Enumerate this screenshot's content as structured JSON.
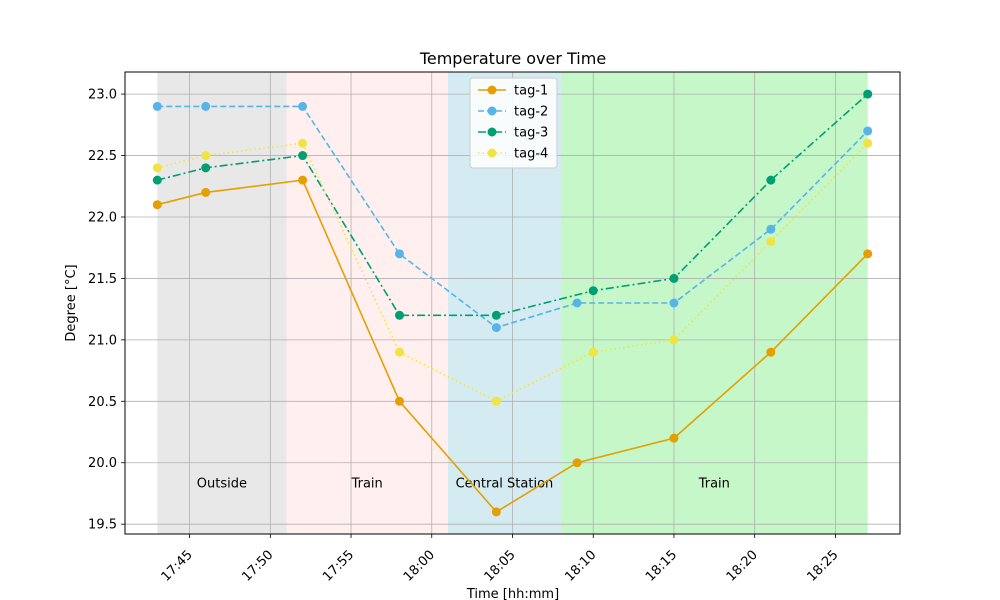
{
  "chart_data": {
    "type": "line",
    "title": "Temperature over Time",
    "xlabel": "Time [hh:mm]",
    "ylabel": "Degree [°C]",
    "xlim": [
      "17:41",
      "18:29"
    ],
    "ylim": [
      19.42,
      23.18
    ],
    "grid": true,
    "legend_position": "upper-center",
    "x_ticks": [
      "17:45",
      "17:50",
      "17:55",
      "18:00",
      "18:05",
      "18:10",
      "18:15",
      "18:20",
      "18:25"
    ],
    "y_ticks": [
      "19.5",
      "20.0",
      "20.5",
      "21.0",
      "21.5",
      "22.0",
      "22.5",
      "23.0"
    ],
    "regions": [
      {
        "label": "Outside",
        "start": "17:43",
        "end": "17:51",
        "color": "#e8e8e8"
      },
      {
        "label": "Train",
        "start": "17:51",
        "end": "18:01",
        "color": "#fff0ef"
      },
      {
        "label": "Central Station",
        "start": "18:01",
        "end": "18:08",
        "color": "#d4ebf2"
      },
      {
        "label": "Train",
        "start": "18:08",
        "end": "18:27",
        "color": "#c5f7c8"
      }
    ],
    "region_label_y": 19.83,
    "series": [
      {
        "name": "tag-1",
        "color": "#e69f00",
        "dash": "solid",
        "x": [
          "17:43",
          "17:46",
          "17:52",
          "17:58",
          "18:04",
          "18:09",
          "18:15",
          "18:21",
          "18:27"
        ],
        "y": [
          22.1,
          22.2,
          22.3,
          20.5,
          19.6,
          20.0,
          20.2,
          20.9,
          21.7
        ]
      },
      {
        "name": "tag-2",
        "color": "#56b4e9",
        "dash": "dashed",
        "x": [
          "17:43",
          "17:46",
          "17:52",
          "17:58",
          "18:04",
          "18:09",
          "18:15",
          "18:21",
          "18:27"
        ],
        "y": [
          22.9,
          22.9,
          22.9,
          21.7,
          21.1,
          21.3,
          21.3,
          21.9,
          22.7
        ]
      },
      {
        "name": "tag-3",
        "color": "#009e73",
        "dash": "dashdot",
        "x": [
          "17:43",
          "17:46",
          "17:52",
          "17:58",
          "18:04",
          "18:10",
          "18:15",
          "18:21",
          "18:27"
        ],
        "y": [
          22.3,
          22.4,
          22.5,
          21.2,
          21.2,
          21.4,
          21.5,
          22.3,
          23.0
        ]
      },
      {
        "name": "tag-4",
        "color": "#f0e442",
        "dash": "dotted",
        "x": [
          "17:43",
          "17:46",
          "17:52",
          "17:58",
          "18:04",
          "18:10",
          "18:15",
          "18:21",
          "18:27"
        ],
        "y": [
          22.4,
          22.5,
          22.6,
          20.9,
          20.5,
          20.9,
          21.0,
          21.8,
          22.6
        ]
      }
    ]
  }
}
